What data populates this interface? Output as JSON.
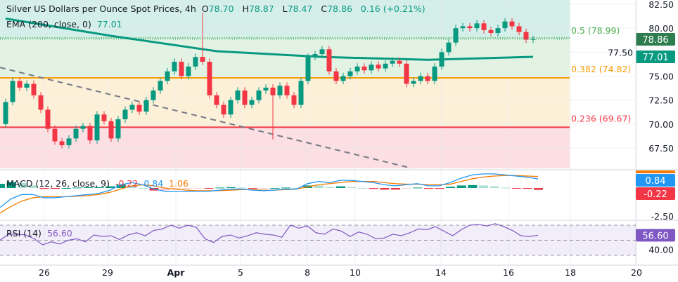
{
  "header": {
    "title": "Silver US Dollars per Ounce Spot Prices, 4h",
    "open_label": "O",
    "open": "78.70",
    "high_label": "H",
    "high": "78.87",
    "low_label": "L",
    "low": "78.47",
    "close_label": "C",
    "close": "78.86",
    "change": "0.16 (+0.21%)"
  },
  "ema": {
    "label": "EMA (200, close, 0)",
    "value": "77.01"
  },
  "macd": {
    "label": "MACD (12, 26, close, 9)",
    "hist": "-0.22",
    "macd": "0.84",
    "signal": "1.06"
  },
  "rsi": {
    "label": "RSI (14)",
    "value": "56.60"
  },
  "colors": {
    "up": "#089981",
    "down": "#f23645",
    "ema": "#089981",
    "macd": "#2196f3",
    "signal": "#f57c00",
    "rsi": "#7e57c2",
    "fib_05": "#4caf50",
    "fib_0382": "#f59d0c",
    "fib_0236": "#f23645"
  },
  "chart_data": [
    {
      "type": "candlestick",
      "title": "Silver US Dollars per Ounce Spot Prices, 4h",
      "ylim": [
        66,
        83
      ],
      "yticks": [
        "82.50",
        "80.00",
        "77.50",
        "75.00",
        "72.50",
        "70.00",
        "67.50"
      ],
      "first_open": 70.0,
      "closes": [
        72.3,
        74.5,
        73.8,
        74.2,
        73.0,
        71.5,
        69.5,
        68.2,
        67.8,
        68.5,
        69.5,
        69.8,
        68.3,
        71.0,
        70.3,
        68.5,
        70.5,
        71.5,
        72.0,
        71.3,
        72.5,
        73.5,
        74.5,
        75.5,
        76.5,
        75.0,
        76.0,
        77.0,
        76.5,
        73.0,
        72.0,
        71.0,
        72.5,
        73.5,
        72.0,
        72.5,
        73.5,
        73.8,
        73.0,
        74.0,
        73.0,
        72.0,
        74.5,
        77.0,
        77.3,
        77.8,
        75.5,
        74.5,
        75.0,
        75.5,
        76.0,
        75.6,
        76.2,
        75.8,
        76.3,
        76.6,
        76.3,
        74.2,
        74.5,
        75.0,
        74.5,
        76.0,
        77.5,
        78.5,
        80.0,
        80.2,
        80.0,
        80.5,
        79.8,
        79.5,
        80.0,
        80.7,
        80.2,
        79.6,
        78.8,
        78.86
      ],
      "extremes": [
        {
          "bar": 28,
          "high": 81.6
        },
        {
          "bar": 38,
          "low": 68.4
        }
      ],
      "ema_points": [
        [
          0,
          81.0
        ],
        [
          15,
          79.2
        ],
        [
          30,
          77.6
        ],
        [
          45,
          77.0
        ],
        [
          60,
          76.7
        ],
        [
          75,
          77.01
        ]
      ],
      "trendline": [
        [
          -0.8,
          75.9
        ],
        [
          57.7,
          65.4
        ]
      ],
      "fib": [
        {
          "label": "0.5 (78.99)",
          "level": 78.99,
          "key": "fib_05"
        },
        {
          "label": "0.382 (74.82)",
          "level": 74.82,
          "key": "fib_0382"
        },
        {
          "label": "0.236 (69.67)",
          "level": 69.67,
          "key": "fib_0236"
        }
      ],
      "last_price": "78.86",
      "ema_last": "77.01",
      "xticks": [
        {
          "label": "26",
          "bar": 5.5
        },
        {
          "label": "29",
          "bar": 14.5
        },
        {
          "label": "Apr",
          "bar": 24.2
        },
        {
          "label": "5",
          "bar": 33.4
        },
        {
          "label": "8",
          "bar": 42.9
        },
        {
          "label": "10",
          "bar": 49.7
        },
        {
          "label": "14",
          "bar": 61.9
        },
        {
          "label": "16",
          "bar": 71.5
        },
        {
          "label": "18",
          "bar": 80.3
        },
        {
          "label": "20",
          "bar": 89.7
        }
      ]
    },
    {
      "type": "line",
      "name": "MACD",
      "ylim": [
        -3,
        2
      ],
      "ytick": "-2.50",
      "macd": [
        -1.8,
        -1.0,
        -0.6,
        -0.6,
        -0.9,
        -0.9,
        -0.8,
        -0.7,
        -0.6,
        -0.5,
        -0.2,
        0.3,
        0.5,
        0.3,
        -0.1,
        -0.3,
        -0.3,
        -0.3,
        -0.3,
        -0.3,
        -0.2,
        -0.1,
        -0.1,
        -0.2,
        -0.25,
        -0.2,
        -0.1,
        -0.1,
        0.4,
        0.6,
        0.5,
        0.7,
        0.7,
        0.6,
        0.5,
        0.3,
        0.2,
        0.3,
        0.4,
        0.2,
        0.2,
        0.5,
        0.9,
        1.2,
        1.3,
        1.3,
        1.2,
        1.1,
        1.0,
        0.84
      ],
      "signal": [
        -2.3,
        -1.7,
        -1.2,
        -0.9,
        -0.8,
        -0.8,
        -0.8,
        -0.75,
        -0.7,
        -0.6,
        -0.4,
        -0.1,
        0.2,
        0.3,
        0.2,
        0.0,
        -0.1,
        -0.2,
        -0.25,
        -0.25,
        -0.25,
        -0.2,
        -0.15,
        -0.15,
        -0.2,
        -0.2,
        -0.15,
        -0.1,
        0.1,
        0.3,
        0.4,
        0.5,
        0.6,
        0.6,
        0.6,
        0.5,
        0.4,
        0.35,
        0.35,
        0.3,
        0.3,
        0.35,
        0.6,
        0.85,
        1.0,
        1.1,
        1.15,
        1.15,
        1.1,
        1.06
      ],
      "last_macd": "0.84",
      "last_hist": "-0.22"
    },
    {
      "type": "line",
      "name": "RSI (14)",
      "ylim": [
        20,
        80
      ],
      "bands": [
        70,
        50,
        30
      ],
      "ytick": "40.00",
      "values": [
        50,
        58,
        58,
        57,
        52,
        44,
        48,
        45,
        50,
        52,
        48,
        57,
        55,
        56,
        51,
        57,
        60,
        56,
        63,
        65,
        70,
        66,
        70,
        67,
        52,
        47,
        55,
        57,
        53,
        56,
        60,
        58,
        57,
        54,
        70,
        66,
        69,
        60,
        58,
        65,
        62,
        55,
        61,
        58,
        52,
        53,
        58,
        56,
        60,
        65,
        64,
        68,
        62,
        56,
        64,
        70,
        71,
        69,
        72,
        68,
        63,
        56,
        55,
        56.6
      ],
      "last": "56.60"
    }
  ]
}
